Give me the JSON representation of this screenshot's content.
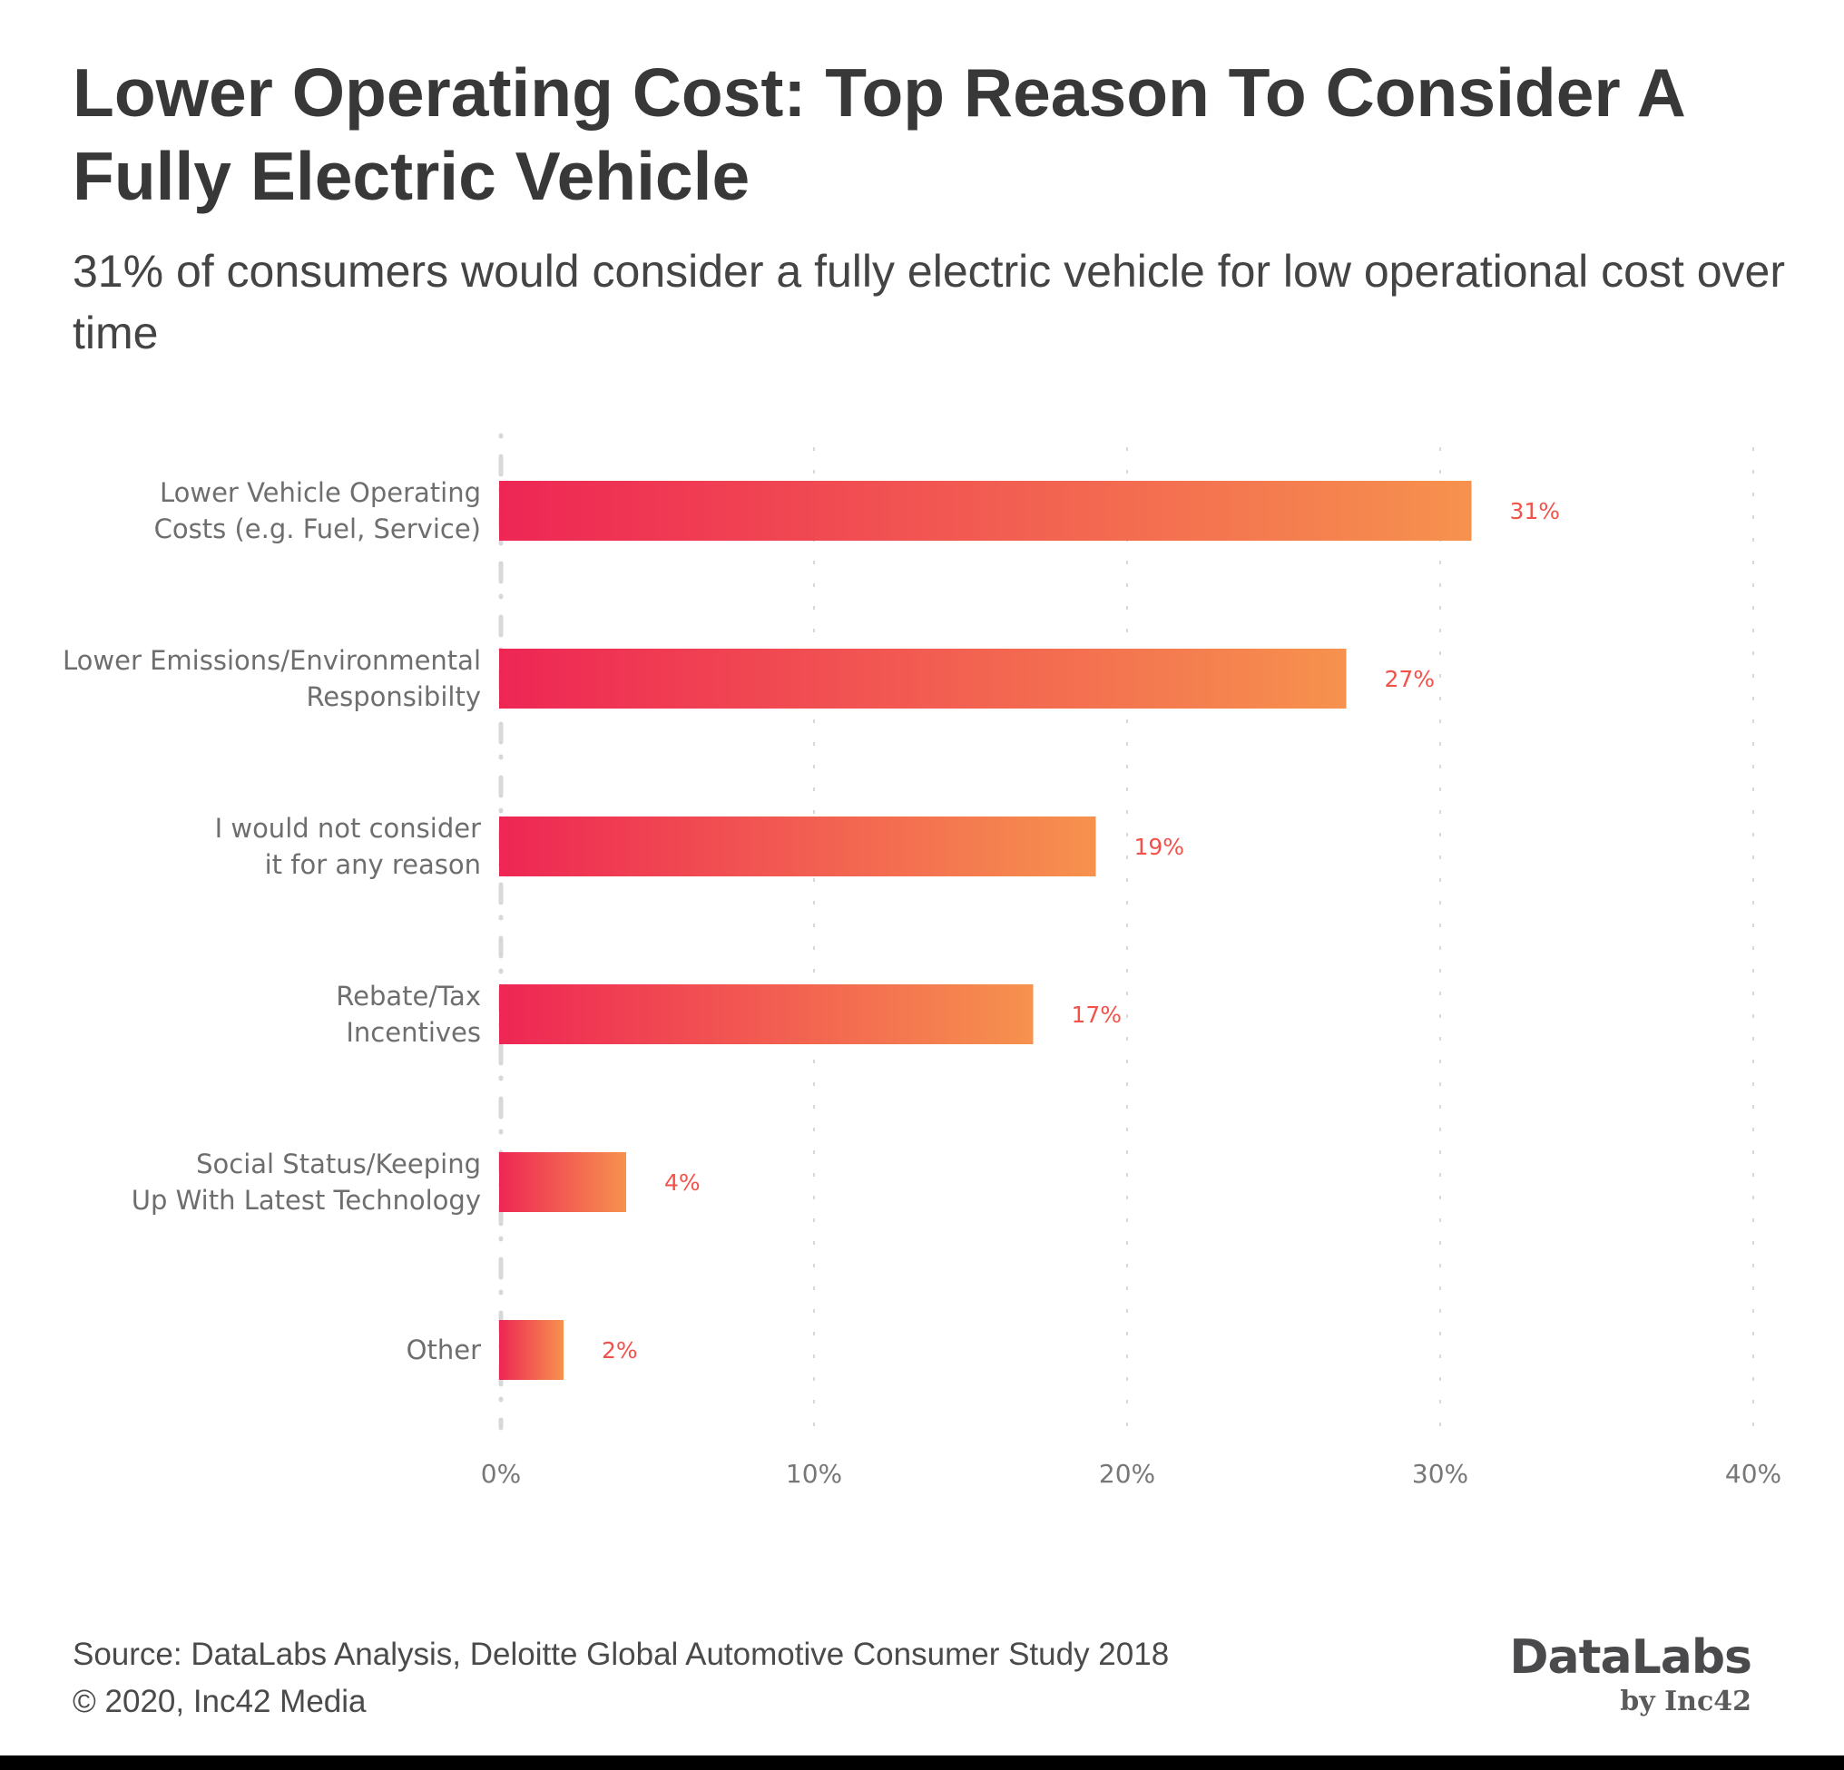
{
  "header": {
    "title": "Lower Operating Cost: Top Reason To Consider A Fully Electric Vehicle",
    "subtitle": "31% of consumers would consider a fully electric vehicle for low operational cost over time"
  },
  "chart_data": {
    "type": "bar",
    "orientation": "horizontal",
    "title": "Lower Operating Cost: Top Reason To Consider A Fully Electric Vehicle",
    "subtitle": "31% of consumers would consider a fully electric vehicle for low operational cost over time",
    "categories": [
      [
        "Lower Vehicle Operating",
        "Costs (e.g. Fuel, Service)"
      ],
      [
        "Lower Emissions/Environmental",
        "Responsibilty"
      ],
      [
        "I would not consider",
        "it for any reason"
      ],
      [
        "Rebate/Tax",
        "Incentives"
      ],
      [
        "Social Status/Keeping",
        "Up With Latest Technology"
      ],
      [
        "Other"
      ]
    ],
    "values": [
      31,
      27,
      19,
      17,
      4,
      2
    ],
    "value_labels": [
      "31%",
      "27%",
      "19%",
      "17%",
      "4%",
      "2%"
    ],
    "unit": "%",
    "xlabel": "",
    "ylabel": "",
    "xlim": [
      0,
      40
    ],
    "xticks": [
      0,
      10,
      20,
      30,
      40
    ],
    "xtick_labels": [
      "0%",
      "10%",
      "20%",
      "30%",
      "40%"
    ],
    "grid": true,
    "legend": "none",
    "colors": {
      "bar_gradient_start": "#ee2654",
      "bar_gradient_end": "#f6924e",
      "value_label": "#f2524a",
      "axis_line": "#d8d8da",
      "gridline": "#cccccc"
    }
  },
  "footer": {
    "source": "Source: DataLabs Analysis, Deloitte Global Automotive Consumer Study 2018",
    "copyright": "© 2020, Inc42 Media"
  },
  "logo": {
    "name": "DataLabs",
    "byline": "by Inc42"
  }
}
